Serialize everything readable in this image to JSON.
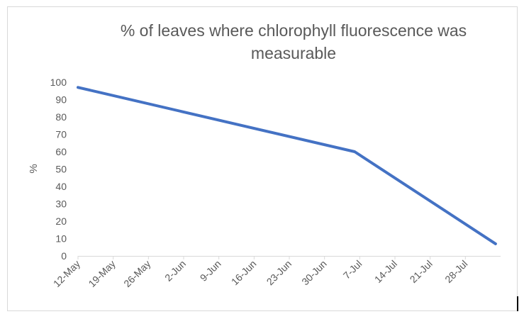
{
  "chart_data": {
    "type": "line",
    "title_lines": [
      "% of leaves where chlorophyll fluorescence was",
      "measurable"
    ],
    "ylabel": "%",
    "xlabel": "",
    "ylim": [
      0,
      100
    ],
    "y_ticks": [
      0,
      10,
      20,
      30,
      40,
      50,
      60,
      70,
      80,
      90,
      100
    ],
    "x_range": [
      "2023-05-12",
      "2023-08-04"
    ],
    "x_tick_labels": [
      "12-May",
      "19-May",
      "26-May",
      "2-Jun",
      "9-Jun",
      "16-Jun",
      "23-Jun",
      "30-Jun",
      "7-Jul",
      "14-Jul",
      "21-Jul",
      "28-Jul"
    ],
    "grid": false,
    "legend": "none",
    "series": [
      {
        "color": "#4472C4",
        "x": [
          "2023-05-12",
          "2023-07-06",
          "2023-08-03"
        ],
        "y": [
          97,
          60,
          7
        ]
      }
    ]
  }
}
